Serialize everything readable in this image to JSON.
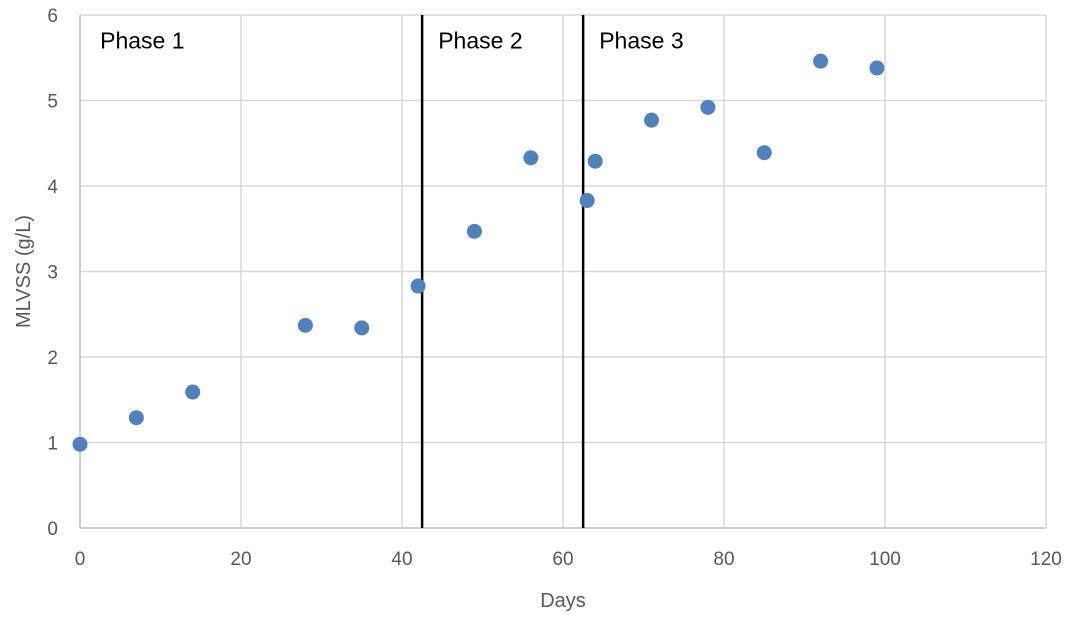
{
  "chart_data": {
    "type": "scatter",
    "title": "",
    "xlabel": "Days",
    "ylabel": "MLVSS (g/L)",
    "xlim": [
      0,
      120
    ],
    "ylim": [
      0,
      6
    ],
    "x_ticks": [
      0,
      20,
      40,
      60,
      80,
      100,
      120
    ],
    "y_ticks": [
      0,
      1,
      2,
      3,
      4,
      5,
      6
    ],
    "grid": true,
    "legend": "none",
    "marker_color": "#4f81bd",
    "gridline_color": "#d9d9d9",
    "series": [
      {
        "x": [
          0,
          7,
          14,
          28,
          35,
          42,
          49,
          56,
          63,
          64,
          71,
          78,
          85,
          92,
          99
        ],
        "y": [
          0.98,
          1.29,
          1.59,
          2.37,
          2.34,
          2.83,
          3.47,
          4.33,
          3.83,
          4.29,
          4.77,
          4.92,
          4.39,
          5.46,
          5.38
        ]
      }
    ],
    "phase_boundaries": [
      42.5,
      62.5
    ],
    "annotations": [
      {
        "text": "Phase 1",
        "x": 2.5,
        "y": 5.7
      },
      {
        "text": "Phase 2",
        "x": 44.5,
        "y": 5.7
      },
      {
        "text": "Phase 3",
        "x": 64.5,
        "y": 5.7
      }
    ]
  }
}
